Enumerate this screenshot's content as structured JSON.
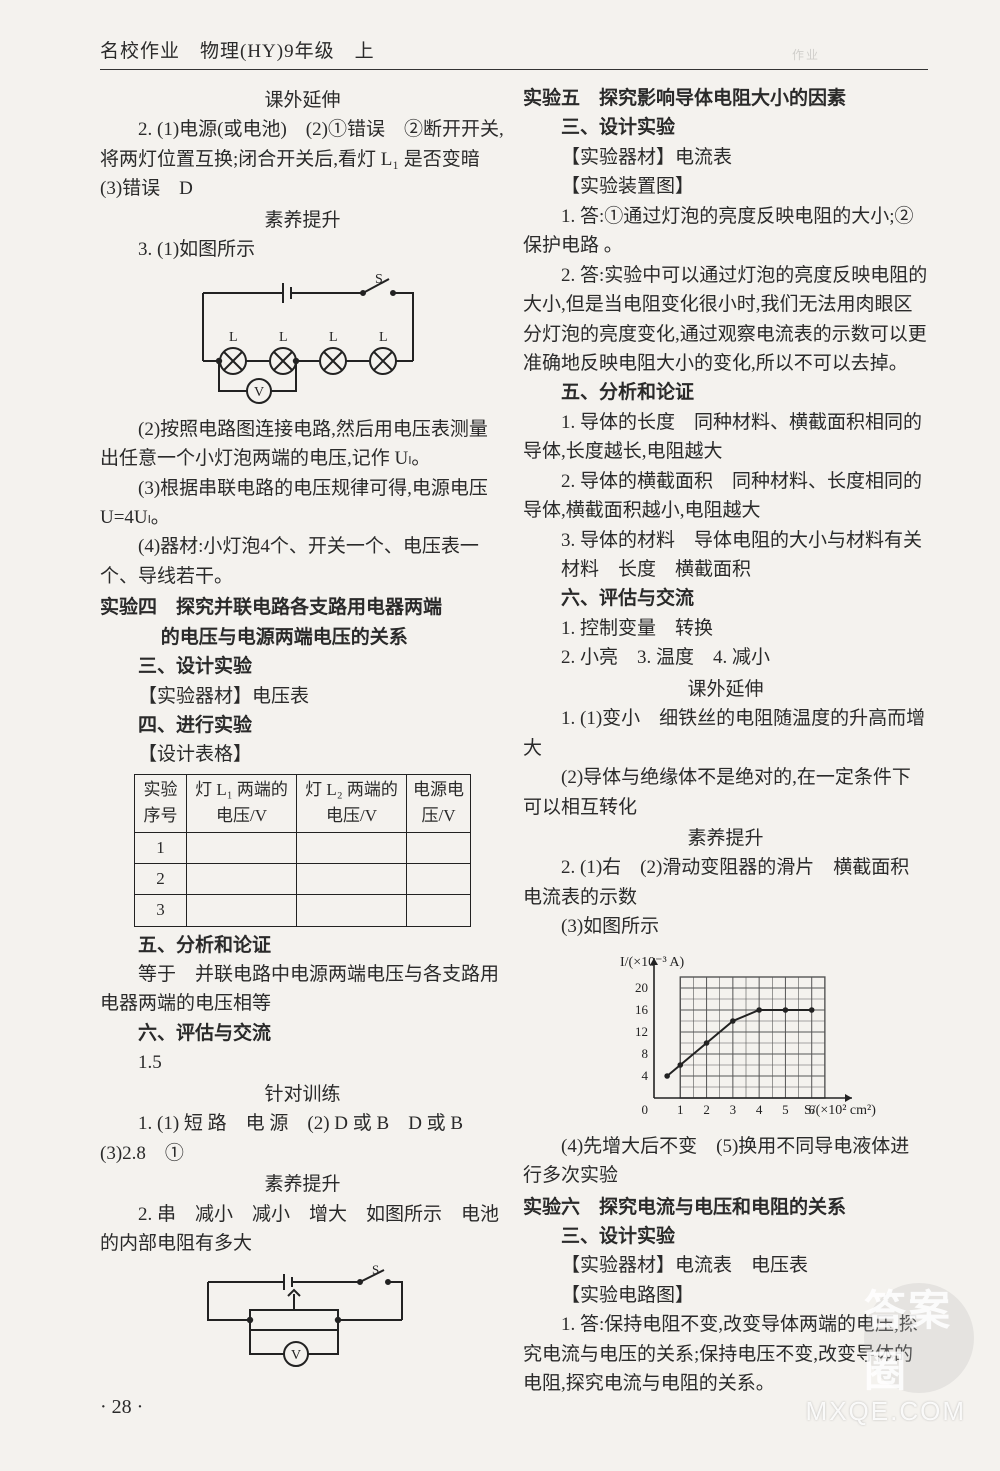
{
  "header": "名校作业　物理(HY)9年级　上",
  "faint_top": "作业",
  "page_number": "· 28 ·",
  "watermark": {
    "circle": "答案圈",
    "url": "MXQE.COM"
  },
  "left": {
    "t_kwyx": "课外延伸",
    "p2": "2. (1)电源(或电池)　(2)①错误　②断开开关,将两灯位置互换;闭合开关后,看灯 L₁ 是否变暗　(3)错误　D",
    "t_syts": "素养提升",
    "p3_lead": "3. (1)如图所示",
    "p3_2": "(2)按照电路图连接电路,然后用电压表测量出任意一个小灯泡两端的电压,记作 Uₗ。",
    "p3_3": "(3)根据串联电路的电压规律可得,电源电压 U=4Uₗ。",
    "p3_4": "(4)器材:小灯泡4个、开关一个、电压表一个、导线若干。",
    "exp4_title1": "实验四　探究并联电路各支路用电器两端",
    "exp4_title2": "的电压与电源两端电压的关系",
    "s3": "三、设计实验",
    "s3_equip": "【实验器材】电压表",
    "s4": "四、进行实验",
    "s4_table": "【设计表格】",
    "s5": "五、分析和论证",
    "s5_body": "等于　并联电路中电源两端电压与各支路用电器两端的电压相等",
    "s6": "六、评估与交流",
    "s6_val": "1.5",
    "t_zdxl": "针对训练",
    "zd1": "1. (1) 短 路　电 源　(2) D 或 B　D 或 B　(3)2.8　①",
    "t_syts2": "素养提升",
    "sy2": "2. 串　减小　减小　增大　如图所示　电池的内部电阻有多大",
    "table": {
      "cols": [
        "实验序号",
        "灯 L₁ 两端的电压/V",
        "灯 L₂ 两端的电压/V",
        "电源电压/V"
      ],
      "rows": [
        "1",
        "2",
        "3"
      ]
    }
  },
  "right": {
    "exp5_title": "实验五　探究影响导体电阻大小的因素",
    "s3": "三、设计实验",
    "s3_equip": "【实验器材】电流表",
    "s3_fig": "【实验装置图】",
    "a1": "1. 答:①通过灯泡的亮度反映电阻的大小;②保护电路 。",
    "a2": "2. 答:实验中可以通过灯泡的亮度反映电阻的大小,但是当电阻变化很小时,我们无法用肉眼区分灯泡的亮度变化,通过观察电流表的示数可以更准确地反映电阻大小的变化,所以不可以去掉。",
    "s5": "五、分析和论证",
    "a5_1": "1. 导体的长度　同种材料、横截面积相同的导体,长度越长,电阻越大",
    "a5_2": "2. 导体的横截面积　同种材料、长度相同的导体,横截面积越小,电阻越大",
    "a5_3": "3. 导体的材料　导体电阻的大小与材料有关",
    "a5_4": "材料　长度　横截面积",
    "s6": "六、评估与交流",
    "a6_1": "1. 控制变量　转换",
    "a6_2": "2. 小亮　3. 温度　4. 减小",
    "t_kwyx": "课外延伸",
    "k1": "1. (1)变小　细铁丝的电阻随温度的升高而增大",
    "k2": "(2)导体与绝缘体不是绝对的,在一定条件下可以相互转化",
    "t_syts": "素养提升",
    "sy2_1": "2. (1)右　(2)滑动变阻器的滑片　横截面积　电流表的示数",
    "sy2_3": "(3)如图所示",
    "sy2_4": "(4)先增大后不变　(5)换用不同导电液体进行多次实验",
    "exp6_title": "实验六　探究电流与电压和电阻的关系",
    "e6_s3": "三、设计实验",
    "e6_equip": "【实验器材】电流表　电压表",
    "e6_fig": "【实验电路图】",
    "e6_a1": "1. 答:保持电阻不变,改变导体两端的电压,探究电流与电压的关系;保持电压不变,改变导体的电阻,探究电流与电阻的关系。",
    "chart": {
      "type": "line",
      "x_label": "S/(×10² cm²)",
      "y_label": "I/(×10⁻³ A)",
      "xlim": [
        0,
        7
      ],
      "ylim": [
        0,
        24
      ],
      "xticks": [
        1,
        2,
        3,
        4,
        5,
        6
      ],
      "yticks": [
        4,
        8,
        12,
        16,
        20
      ],
      "points_x": [
        0.5,
        1,
        2,
        3,
        4,
        5,
        6
      ],
      "points_y": [
        4,
        6,
        10,
        14,
        16,
        16,
        16
      ],
      "line_color": "#222",
      "grid_color": "#555",
      "bg": "#f4f2ee"
    }
  }
}
